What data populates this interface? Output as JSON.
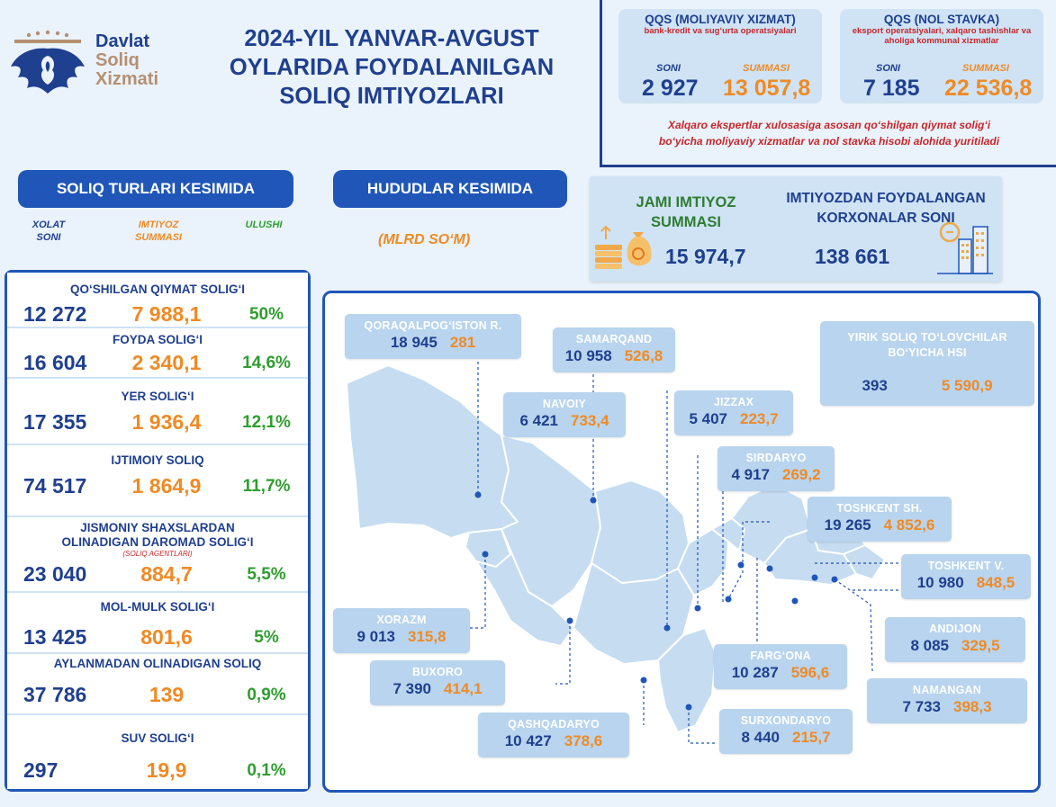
{
  "logo": {
    "line1": "Davlat",
    "line2": "Soliq",
    "line3": "Xizmati"
  },
  "title": {
    "line1": "2024-YIL YANVAR-AVGUST",
    "line2": "OYLARIDA FOYDALANILGAN",
    "line3": "SOLIQ IMTIYOZLARI"
  },
  "qqs": {
    "left": {
      "title": "QQS (MOLIYAVIY XIZMAT)",
      "subtitle": "bank-kredit va sug‘urta operatsiyalari",
      "count_label": "SONI",
      "sum_label": "SUMMASI",
      "count": "2 927",
      "sum": "13 057,8"
    },
    "right": {
      "title": "QQS (NOL STAVKA)",
      "subtitle": "eksport operatsiyalari, xalqaro tashishlar va aholiga kommunal xizmatlar",
      "count_label": "SONI",
      "sum_label": "SUMMASI",
      "count": "7 185",
      "sum": "22 536,8"
    },
    "note_line1": "Xalqaro ekspertlar xulosasiga asosan qo‘shilgan qiymat solig‘i",
    "note_line2": "bo‘yicha moliyaviy xizmatlar va nol stavka hisobi alohida yuritiladi"
  },
  "sections": {
    "by_tax": "SOLIQ TURLARI KESIMIDA",
    "by_region": "HUDUDLAR KESIMIDA",
    "unit": "(MLRD SO‘M)"
  },
  "columns": {
    "count_l1": "XOLAT",
    "count_l2": "SONI",
    "sum_l1": "IMTIYOZ",
    "sum_l2": "SUMMASI",
    "share": "ULUSHI"
  },
  "totals": {
    "sum_l1": "JAMI IMTIYOZ",
    "sum_l2": "SUMMASI",
    "sum": "15 974,7",
    "org_l1": "IMTIYOZDAN FOYDALANGAN",
    "org_l2": "KORXONALAR SONI",
    "orgs": "138 661"
  },
  "taxes": [
    {
      "name": "QO‘SHILGAN QIYMAT SOLIG‘I",
      "count": "12 272",
      "sum": "7 988,1",
      "share": "50%"
    },
    {
      "name": "FOYDA SOLIG‘I",
      "count": "16 604",
      "sum": "2 340,1",
      "share": "14,6%"
    },
    {
      "name": "YER SOLIG‘I",
      "count": "17 355",
      "sum": "1 936,4",
      "share": "12,1%"
    },
    {
      "name": "IJTIMOIY SOLIQ",
      "count": "74 517",
      "sum": "1 864,9",
      "share": "11,7%"
    },
    {
      "name": "JISMONIY SHAXSLARDAN",
      "name2": "OLINADIGAN DAROMAD SOLIG‘I",
      "sub": "(SOLIQ AGENTLARI)",
      "count": "23 040",
      "sum": "884,7",
      "share": "5,5%"
    },
    {
      "name": "MOL-MULK SOLIG‘I",
      "count": "13 425",
      "sum": "801,6",
      "share": "5%"
    },
    {
      "name": "AYLANMADAN OLINADIGAN SOLIQ",
      "count": "37 786",
      "sum": "139",
      "share": "0,9%"
    },
    {
      "name": "SUV SOLIG‘I",
      "count": "297",
      "sum": "19,9",
      "share": "0,1%"
    }
  ],
  "regions": [
    {
      "name": "QORAQALPOG‘ISTON R.",
      "count": "18 945",
      "sum": "281"
    },
    {
      "name": "SAMARQAND",
      "count": "10 958",
      "sum": "526,8"
    },
    {
      "name": "NAVOIY",
      "count": "6 421",
      "sum": "733,4"
    },
    {
      "name": "JIZZAX",
      "count": "5 407",
      "sum": "223,7"
    },
    {
      "name": "SIRDARYO",
      "count": "4 917",
      "sum": "269,2"
    },
    {
      "name": "TOSHKENT SH.",
      "count": "19 265",
      "sum": "4 852,6"
    },
    {
      "name": "TOSHKENT V.",
      "count": "10 980",
      "sum": "848,5"
    },
    {
      "name": "XORAZM",
      "count": "9 013",
      "sum": "315,8"
    },
    {
      "name": "ANDIJON",
      "count": "8 085",
      "sum": "329,5"
    },
    {
      "name": "FARG‘ONA",
      "count": "10 287",
      "sum": "596,6"
    },
    {
      "name": "BUXORO",
      "count": "7 390",
      "sum": "414,1"
    },
    {
      "name": "NAMANGAN",
      "count": "7 733",
      "sum": "398,3"
    },
    {
      "name": "QASHQADARYO",
      "count": "10 427",
      "sum": "378,6"
    },
    {
      "name": "SURXONDARYO",
      "count": "8 440",
      "sum": "215,7"
    }
  ],
  "large_taxpayers": {
    "name_l1": "YIRIK SOLIQ TO‘LOVCHILAR",
    "name_l2": "BO‘YICHA HSI",
    "count": "393",
    "sum": "5 590,9"
  },
  "colors": {
    "navy": "#1f3f8f",
    "blue": "#1f56b8",
    "orange": "#f08a24",
    "green": "#2e9e2e",
    "red": "#c8262a",
    "panel": "#cfe3f5",
    "map_land": "#b8d4ee"
  }
}
